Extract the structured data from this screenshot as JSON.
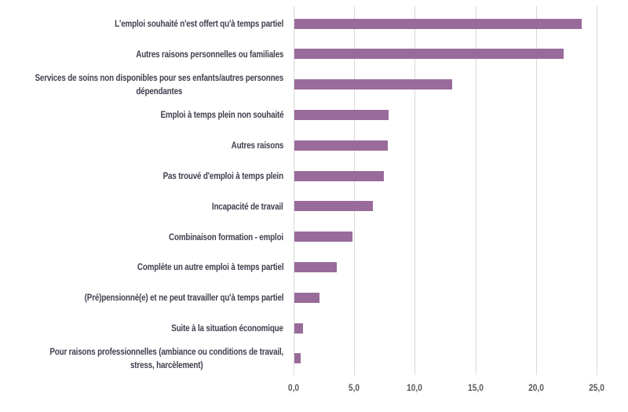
{
  "chart_data": {
    "type": "bar",
    "orientation": "horizontal",
    "title": "",
    "xlabel": "",
    "ylabel": "",
    "xlim": [
      0,
      25
    ],
    "grid": true,
    "bar_color": "#996b9b",
    "xticks": [
      "0,0",
      "5,0",
      "10,0",
      "15,0",
      "20,0",
      "25,0"
    ],
    "categories": [
      [
        "L'emploi souhaité n'est offert qu'à temps partiel"
      ],
      [
        "Autres raisons personnelles ou familiales"
      ],
      [
        "Services de soins non disponibles pour ses enfants/autres personnes",
        "dépendantes"
      ],
      [
        "Emploi à temps plein non souhaité"
      ],
      [
        "Autres raisons"
      ],
      [
        "Pas trouvé d'emploi à temps plein"
      ],
      [
        "Incapacité de travail"
      ],
      [
        "Combinaison formation - emploi"
      ],
      [
        "Complète un autre emploi à temps partiel"
      ],
      [
        "(Pré)pensionné(e) et ne peut travailler qu'à temps partiel"
      ],
      [
        "Suite à la situation économique"
      ],
      [
        "Pour raisons professionnelles (ambiance ou conditions de travail,",
        "stress, harcèlement)"
      ]
    ],
    "values": [
      23.7,
      22.2,
      13.0,
      7.8,
      7.7,
      7.4,
      6.5,
      4.8,
      3.5,
      2.1,
      0.7,
      0.5
    ]
  }
}
